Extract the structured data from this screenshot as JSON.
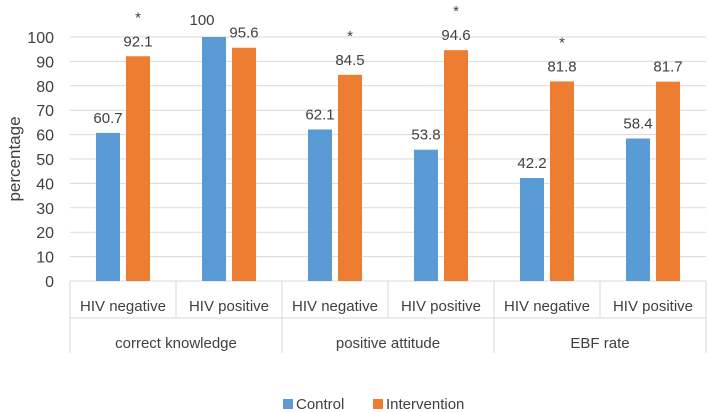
{
  "chart_data": {
    "type": "bar",
    "title": "",
    "ylabel": "percentage",
    "xlabel": "",
    "ylim": [
      0,
      100
    ],
    "yticks": [
      0,
      10,
      20,
      30,
      40,
      50,
      60,
      70,
      80,
      90,
      100
    ],
    "grid": true,
    "legend_position": "bottom",
    "groups": [
      "correct knowledge",
      "positive attitude",
      "EBF rate"
    ],
    "categories": [
      "HIV negative",
      "HIV positive",
      "HIV negative",
      "HIV positive",
      "HIV negative",
      "HIV positive"
    ],
    "series": [
      {
        "name": "Control",
        "color": "#5b9bd5",
        "values": [
          60.7,
          100,
          62.1,
          53.8,
          42.2,
          58.4
        ],
        "labels": [
          "60.7",
          "100",
          "62.1",
          "53.8",
          "42.2",
          "58.4"
        ]
      },
      {
        "name": "Intervention",
        "color": "#ed7d31",
        "values": [
          92.1,
          95.6,
          84.5,
          94.6,
          81.8,
          81.7
        ],
        "labels": [
          "92.1",
          "95.6",
          "84.5",
          "94.6",
          "81.8",
          "81.7"
        ]
      }
    ],
    "significance_marker": "*",
    "significant": [
      true,
      false,
      true,
      true,
      true,
      false
    ]
  }
}
